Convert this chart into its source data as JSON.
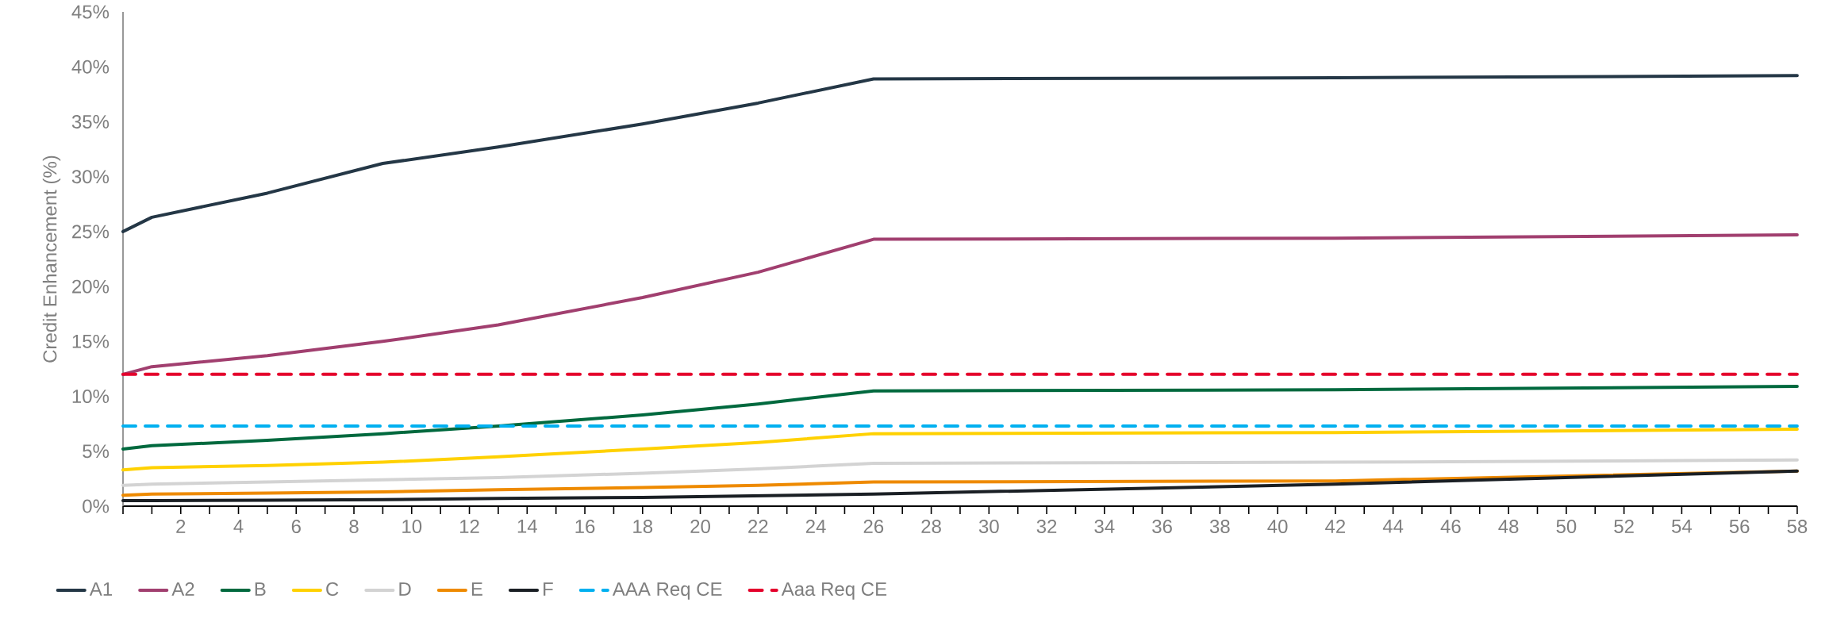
{
  "chart_data": {
    "type": "line",
    "ylabel": "Credit Enhancement (%)",
    "x": [
      0,
      1,
      5,
      9,
      13,
      18,
      22,
      26,
      42,
      58
    ],
    "series": [
      {
        "name": "A1",
        "color": "#243746",
        "values": [
          25,
          26.3,
          28.5,
          31.2,
          32.7,
          34.8,
          36.7,
          38.9,
          39.0,
          39.2
        ]
      },
      {
        "name": "A2",
        "color": "#a13f6f",
        "values": [
          12.0,
          12.7,
          13.7,
          15.0,
          16.5,
          19.0,
          21.3,
          24.3,
          24.4,
          24.7
        ]
      },
      {
        "name": "B",
        "color": "#00693e",
        "values": [
          5.2,
          5.5,
          6.0,
          6.6,
          7.3,
          8.3,
          9.3,
          10.5,
          10.6,
          10.9
        ]
      },
      {
        "name": "C",
        "color": "#ffd100",
        "values": [
          3.3,
          3.5,
          3.7,
          4.0,
          4.5,
          5.2,
          5.8,
          6.6,
          6.7,
          7.0
        ]
      },
      {
        "name": "D",
        "color": "#d3d3d3",
        "values": [
          1.9,
          2.0,
          2.2,
          2.4,
          2.6,
          3.0,
          3.4,
          3.9,
          4.0,
          4.2
        ]
      },
      {
        "name": "E",
        "color": "#ee8a00",
        "values": [
          1.0,
          1.1,
          1.2,
          1.3,
          1.5,
          1.7,
          1.9,
          2.2,
          2.3,
          3.2
        ]
      },
      {
        "name": "F",
        "color": "#1a1f24",
        "values": [
          0.5,
          0.5,
          0.55,
          0.6,
          0.7,
          0.8,
          0.95,
          1.1,
          2.0,
          3.2
        ]
      },
      {
        "name": "AAA Req CE",
        "color": "#00b0f0",
        "line_style": "dashed",
        "values": [
          7.3,
          7.3,
          7.3,
          7.3,
          7.3,
          7.3,
          7.3,
          7.3,
          7.3,
          7.3
        ]
      },
      {
        "name": "Aaa Req CE",
        "color": "#e4002b",
        "line_style": "dashed",
        "values": [
          12.0,
          12.0,
          12.0,
          12.0,
          12.0,
          12.0,
          12.0,
          12.0,
          12.0,
          12.0
        ]
      }
    ],
    "xlim": [
      0,
      58
    ],
    "xticks": [
      {
        "value": 0,
        "label": null
      },
      {
        "value": 1,
        "label": null
      },
      2,
      {
        "value": 3,
        "label": null
      },
      4,
      {
        "value": 5,
        "label": null
      },
      6,
      {
        "value": 7,
        "label": null
      },
      8,
      {
        "value": 9,
        "label": null
      },
      10,
      {
        "value": 11,
        "label": null
      },
      12,
      {
        "value": 13,
        "label": null
      },
      14,
      {
        "value": 15,
        "label": null
      },
      16,
      {
        "value": 17,
        "label": null
      },
      18,
      {
        "value": 19,
        "label": null
      },
      20,
      {
        "value": 21,
        "label": null
      },
      22,
      {
        "value": 23,
        "label": null
      },
      24,
      {
        "value": 25,
        "label": null
      },
      26,
      {
        "value": 27,
        "label": null
      },
      28,
      {
        "value": 29,
        "label": null
      },
      30,
      {
        "value": 31,
        "label": null
      },
      32,
      {
        "value": 33,
        "label": null
      },
      34,
      {
        "value": 35,
        "label": null
      },
      36,
      {
        "value": 37,
        "label": null
      },
      38,
      {
        "value": 39,
        "label": null
      },
      40,
      {
        "value": 41,
        "label": null
      },
      42,
      {
        "value": 43,
        "label": null
      },
      44,
      {
        "value": 45,
        "label": null
      },
      46,
      {
        "value": 47,
        "label": null
      },
      48,
      {
        "value": 49,
        "label": null
      },
      50,
      {
        "value": 51,
        "label": null
      },
      52,
      {
        "value": 53,
        "label": null
      },
      54,
      {
        "value": 55,
        "label": null
      },
      56,
      {
        "value": 57,
        "label": null
      },
      58
    ],
    "ylim": [
      0,
      45
    ],
    "yticks": [
      {
        "value": 0,
        "label": "0%"
      },
      {
        "value": 5,
        "label": "5%"
      },
      {
        "value": 10,
        "label": "10%"
      },
      {
        "value": 15,
        "label": "15%"
      },
      {
        "value": 20,
        "label": "20%"
      },
      {
        "value": 25,
        "label": "25%"
      },
      {
        "value": 30,
        "label": "30%"
      },
      {
        "value": 35,
        "label": "35%"
      },
      {
        "value": 40,
        "label": "40%"
      },
      {
        "value": 45,
        "label": "45%"
      }
    ],
    "grid": false,
    "legend": "bottom",
    "marker": "none",
    "line_style": "solid"
  }
}
